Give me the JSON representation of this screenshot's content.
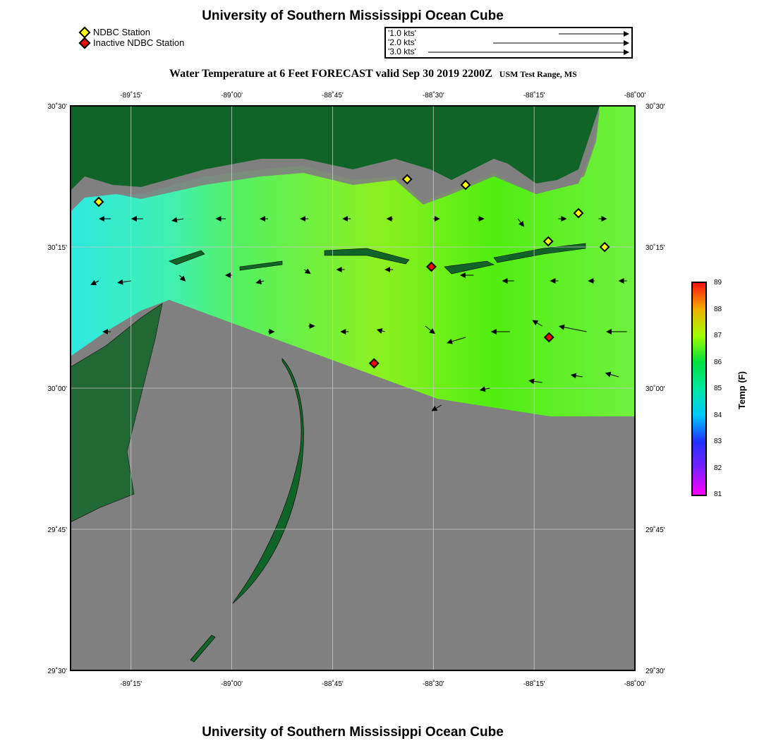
{
  "title": "University of Southern Mississippi Ocean Cube",
  "footer": "University of Southern Mississippi Ocean Cube",
  "legend": {
    "active": "NDBC Station",
    "inactive": "Inactive NDBC Station",
    "active_color": "#ffff00",
    "inactive_color": "#ff0000"
  },
  "vector_scale": [
    {
      "label": "'1.0 kts'",
      "kts": 1
    },
    {
      "label": "'2.0 kts'",
      "kts": 2
    },
    {
      "label": "'3.0 kts'",
      "kts": 3
    }
  ],
  "subtitle": "Water Temperature at 6 Feet FORECAST valid Sep 30 2019 2200Z",
  "region": "USM Test Range, MS",
  "lon_ticks": [
    {
      "v": -89.25,
      "label": "-89˚15'"
    },
    {
      "v": -89.0,
      "label": "-89˚00'"
    },
    {
      "v": -88.75,
      "label": "-88˚45'"
    },
    {
      "v": -88.5,
      "label": "-88˚30'"
    },
    {
      "v": -88.25,
      "label": "-88˚15'"
    },
    {
      "v": -88.0,
      "label": "-88˚00'"
    }
  ],
  "lat_ticks": [
    {
      "v": 30.5,
      "label": "30˚30'"
    },
    {
      "v": 30.25,
      "label": "30˚15'"
    },
    {
      "v": 30.0,
      "label": "30˚00'"
    },
    {
      "v": 29.75,
      "label": "29˚45'"
    },
    {
      "v": 29.5,
      "label": "29˚30'"
    }
  ],
  "colorbar": {
    "title": "Temp (F)",
    "min": 81,
    "max": 89,
    "labels": [
      "89",
      "88",
      "87",
      "86",
      "85",
      "84",
      "83",
      "82",
      "81"
    ]
  },
  "stations_active": [
    [
      -89.33,
      30.33
    ],
    [
      -88.565,
      30.37
    ],
    [
      -88.42,
      30.36
    ],
    [
      -88.14,
      30.31
    ],
    [
      -88.215,
      30.26
    ],
    [
      -88.075,
      30.25
    ]
  ],
  "stations_inactive": [
    [
      -88.505,
      30.215
    ],
    [
      -88.213,
      30.09
    ],
    [
      -88.647,
      30.044
    ]
  ],
  "currents": [
    [
      -89.3,
      30.3,
      -0.6,
      0
    ],
    [
      -89.22,
      30.3,
      -0.6,
      0
    ],
    [
      -89.12,
      30.3,
      -0.6,
      -0.1
    ],
    [
      -89.015,
      30.3,
      -0.5,
      0
    ],
    [
      -88.91,
      30.3,
      -0.4,
      0
    ],
    [
      -88.81,
      30.3,
      -0.4,
      0
    ],
    [
      -88.705,
      30.3,
      -0.4,
      0
    ],
    [
      -88.6,
      30.3,
      -0.3,
      0
    ],
    [
      -88.5,
      30.3,
      0.3,
      0
    ],
    [
      -88.39,
      30.3,
      0.3,
      0
    ],
    [
      -88.29,
      30.3,
      0.3,
      -0.4
    ],
    [
      -88.19,
      30.3,
      0.4,
      0
    ],
    [
      -88.09,
      30.3,
      0.4,
      0
    ],
    [
      -89.33,
      30.19,
      -0.4,
      -0.2
    ],
    [
      -89.25,
      30.19,
      -0.7,
      -0.1
    ],
    [
      -89.13,
      30.2,
      0.3,
      -0.3
    ],
    [
      -89.0,
      30.2,
      -0.3,
      0
    ],
    [
      -88.92,
      30.19,
      -0.4,
      -0.1
    ],
    [
      -88.82,
      30.21,
      0.3,
      -0.2
    ],
    [
      -88.72,
      30.21,
      -0.4,
      0
    ],
    [
      -88.6,
      30.21,
      -0.4,
      0
    ],
    [
      -88.4,
      30.2,
      -0.7,
      0
    ],
    [
      -88.3,
      30.19,
      -0.6,
      0
    ],
    [
      -88.19,
      30.19,
      -0.4,
      0
    ],
    [
      -88.1,
      30.19,
      -0.3,
      0
    ],
    [
      -88.02,
      30.19,
      -0.4,
      0
    ],
    [
      -89.3,
      30.1,
      -0.4,
      0
    ],
    [
      -88.91,
      30.1,
      0.3,
      0
    ],
    [
      -88.81,
      30.11,
      0.3,
      0
    ],
    [
      -88.71,
      30.1,
      -0.4,
      0
    ],
    [
      -88.62,
      30.1,
      -0.4,
      0.1
    ],
    [
      -88.52,
      30.11,
      0.5,
      -0.4
    ],
    [
      -88.42,
      30.09,
      -1.0,
      -0.3
    ],
    [
      -88.31,
      30.1,
      -1.0,
      0
    ],
    [
      -88.23,
      30.11,
      -0.5,
      0.3
    ],
    [
      -88.12,
      30.1,
      -1.5,
      0.3
    ],
    [
      -88.02,
      30.1,
      -1.1,
      0
    ],
    [
      -88.48,
      29.97,
      -0.5,
      -0.3
    ],
    [
      -88.36,
      30.0,
      -0.5,
      -0.1
    ],
    [
      -88.23,
      30.01,
      -0.7,
      0.1
    ],
    [
      -88.13,
      30.02,
      -0.6,
      0.1
    ],
    [
      -88.04,
      30.02,
      -0.7,
      0.2
    ]
  ]
}
